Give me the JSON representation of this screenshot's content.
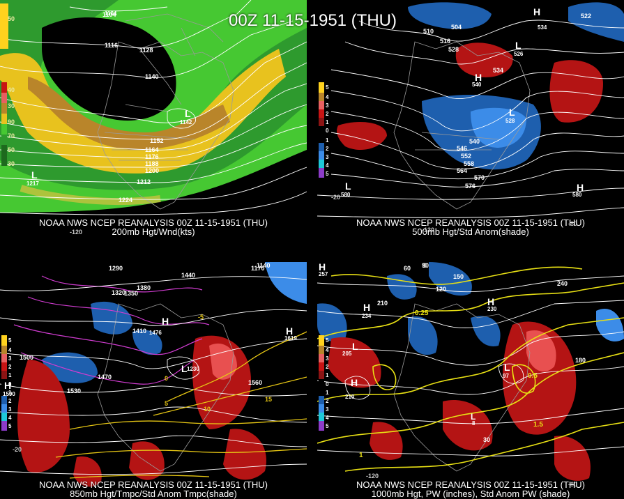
{
  "main_title": "00Z 11-15-1951 (THU)",
  "panels": [
    {
      "id": "200mb",
      "caption_line1": "NOAA NWS NCEP REANALYSIS 00Z 11-15-1951 (THU)",
      "caption_line2": "200mb Hgt/Wnd(kts)",
      "colorbar": [
        "50",
        "40",
        "30",
        "90",
        "70",
        "50",
        "30"
      ],
      "contour_labels": [
        "1104",
        "1116",
        "1128",
        "1140",
        "1152",
        "1164",
        "1176",
        "1188",
        "1200",
        "1212",
        "1224"
      ],
      "pressure_centers": [
        {
          "type": "L",
          "value": "1142"
        },
        {
          "type": "L",
          "value": "1217"
        },
        {
          "type": "L",
          "value": "1104"
        }
      ],
      "lon_labels": [
        "-120"
      ]
    },
    {
      "id": "500mb",
      "caption_line1": "NOAA NWS NCEP REANALYSIS 00Z 11-15-1951 (THU)",
      "caption_line2": "500mb Hgt/Std Anom(shade)",
      "colorbar": [
        "5",
        "4",
        "3",
        "2",
        "1",
        "0",
        "1",
        "2",
        "3",
        "4",
        "5"
      ],
      "contour_labels": [
        "504",
        "510",
        "516",
        "522",
        "528",
        "534",
        "540",
        "546",
        "552",
        "558",
        "564",
        "570",
        "576"
      ],
      "pressure_centers": [
        {
          "type": "L",
          "value": "528"
        },
        {
          "type": "H",
          "value": "540"
        },
        {
          "type": "L",
          "value": "580"
        },
        {
          "type": "H",
          "value": "580"
        },
        {
          "type": "L",
          "value": "526"
        },
        {
          "type": "H",
          "value": "534"
        }
      ],
      "lon_labels": [
        "-130",
        "-80",
        "-20"
      ]
    },
    {
      "id": "850mb",
      "caption_line1": "NOAA NWS NCEP REANALYSIS 00Z 11-15-1951 (THU)",
      "caption_line2": "850mb Hgt/Tmpc/Std Anom Tmpc(shade)",
      "colorbar": [
        "5",
        "4",
        "3",
        "2",
        "1",
        "0",
        "1",
        "2",
        "3",
        "4",
        "5"
      ],
      "contour_labels": [
        "1290",
        "1320",
        "1350",
        "1380",
        "1410",
        "1440",
        "1470",
        "1500",
        "1530",
        "1560",
        "1140",
        "1170"
      ],
      "temp_labels": [
        "5",
        "10",
        "15",
        "0",
        "-5"
      ],
      "pressure_centers": [
        {
          "type": "H",
          "value": "1476"
        },
        {
          "type": "H",
          "value": "1619"
        },
        {
          "type": "L",
          "value": "1230"
        },
        {
          "type": "H",
          "value": "1590"
        }
      ],
      "lon_labels": [
        "-20"
      ]
    },
    {
      "id": "1000mb",
      "caption_line1": "NOAA NWS NCEP REANALYSIS 00Z 11-15-1951 (THU)",
      "caption_line2": "1000mb Hgt, PW (inches), Std Anom PW (shade)",
      "colorbar": [
        "5",
        "4",
        "3",
        "2",
        "1",
        "0",
        "1",
        "2",
        "3",
        "4",
        "5"
      ],
      "contour_labels": [
        "60",
        "90",
        "120",
        "150",
        "180",
        "210",
        "240",
        "30",
        "0"
      ],
      "pw_labels": [
        "0.25",
        "0.5",
        "1",
        "1.5"
      ],
      "pressure_centers": [
        {
          "type": "H",
          "value": "234"
        },
        {
          "type": "H",
          "value": "210"
        },
        {
          "type": "L",
          "value": "205"
        },
        {
          "type": "H",
          "value": "230"
        },
        {
          "type": "L",
          "value": "97"
        },
        {
          "type": "L",
          "value": "8"
        },
        {
          "type": "H",
          "value": "257"
        }
      ],
      "lon_labels": [
        "-120",
        "-80"
      ]
    }
  ]
}
